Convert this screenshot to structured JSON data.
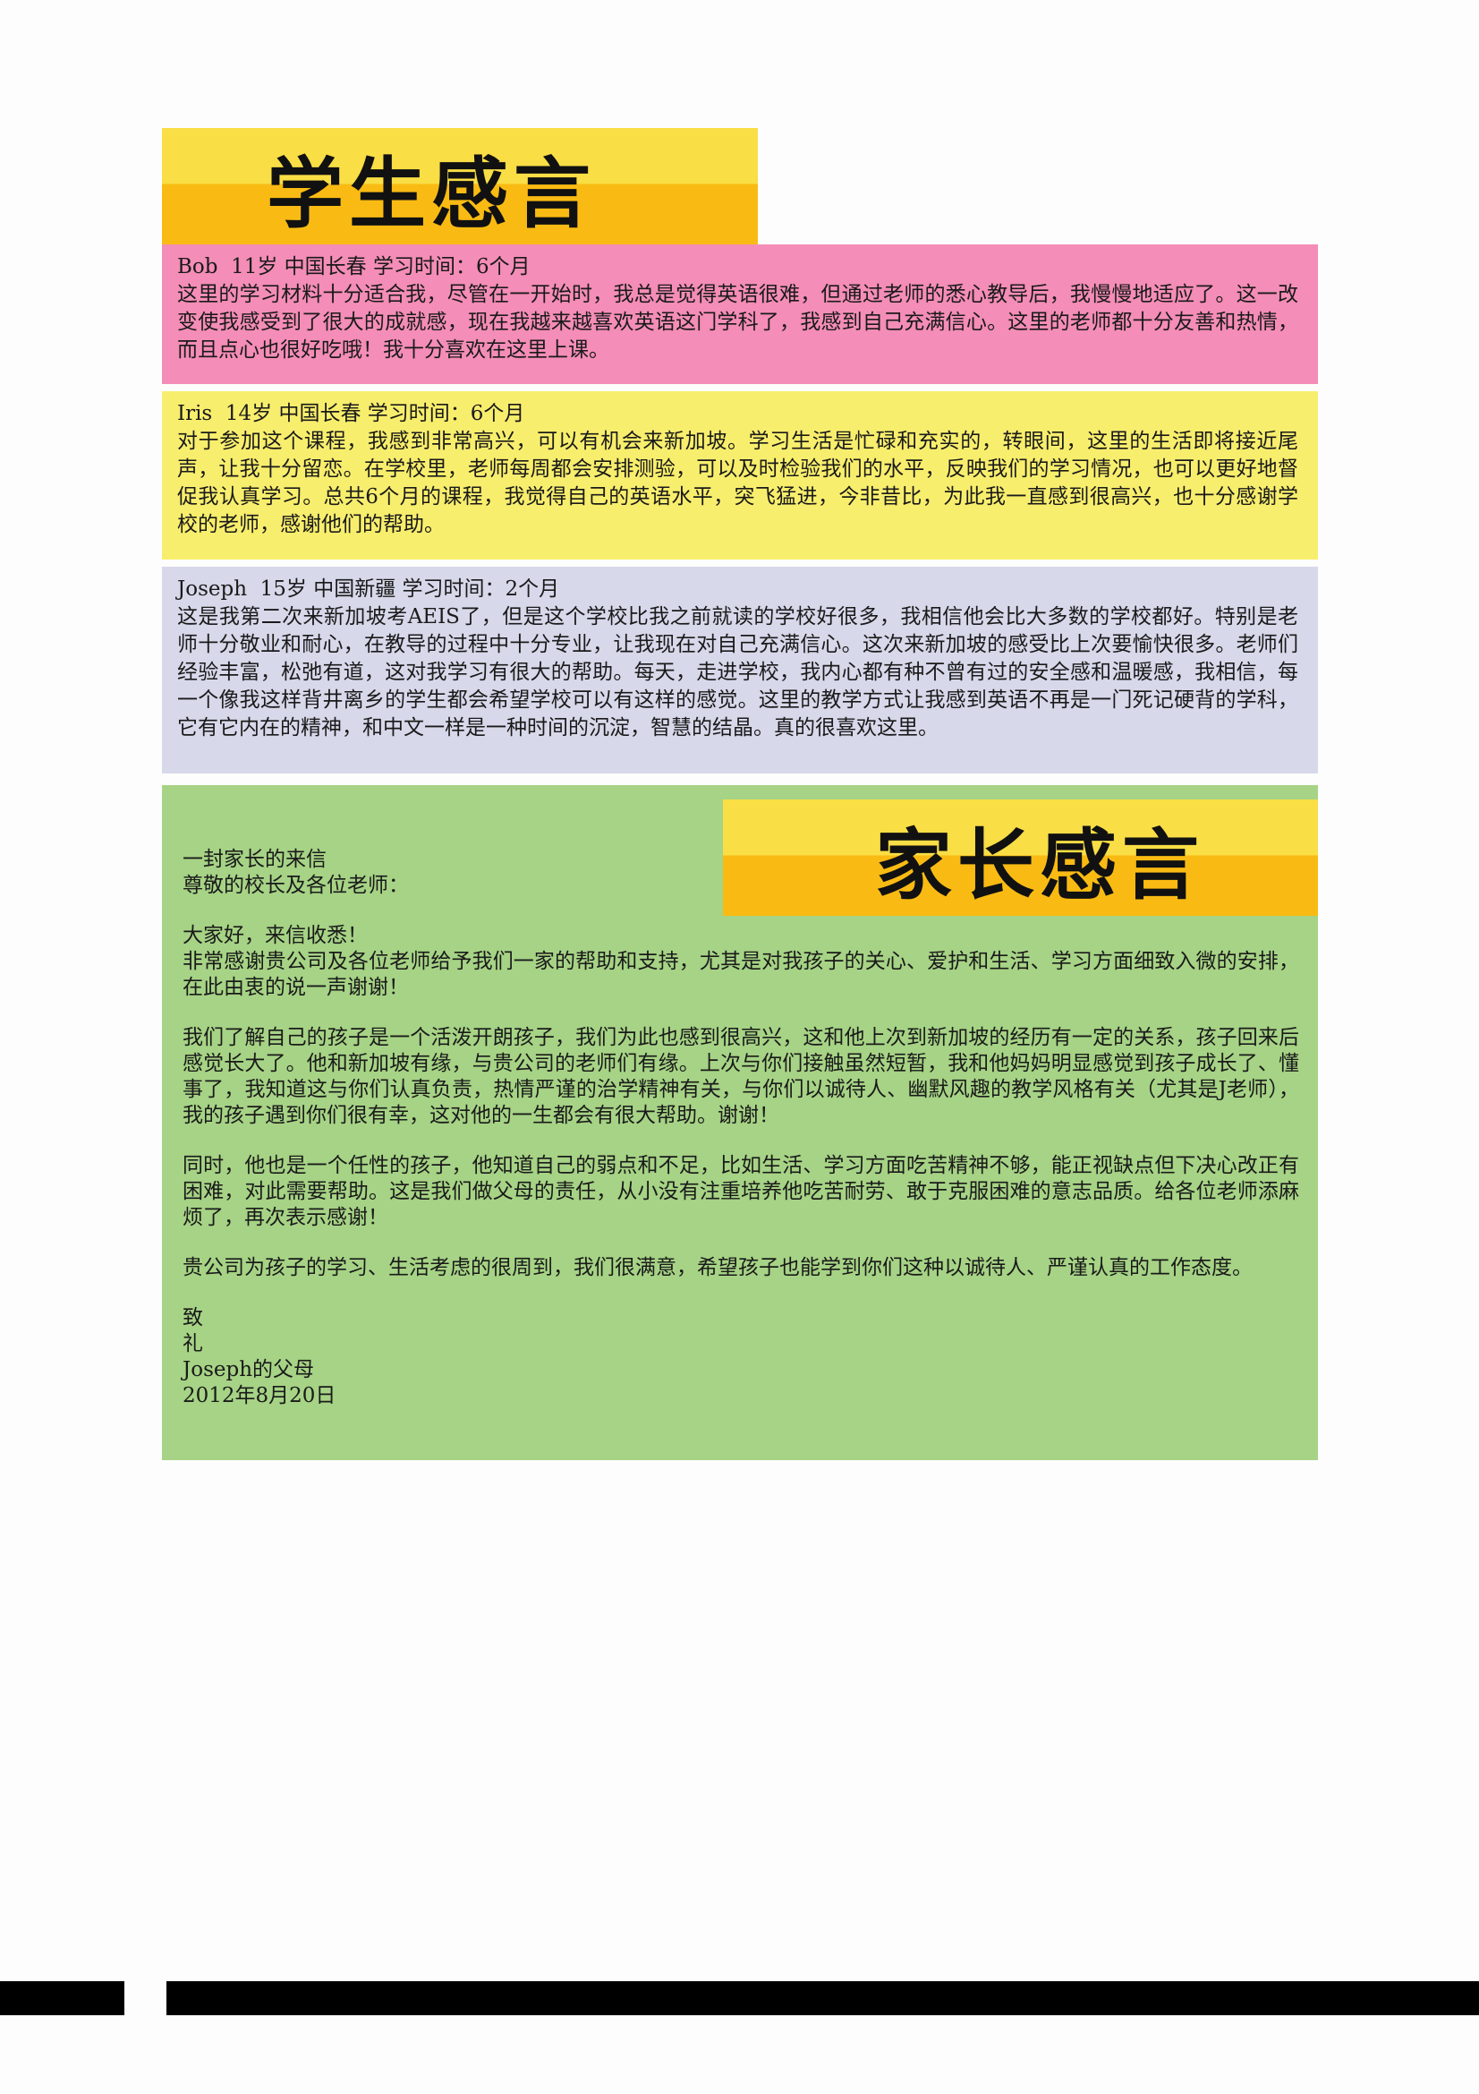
{
  "student_section": {
    "title": "学生感言",
    "testimonials": [
      {
        "meta": "Bob  11岁 中国长春 学习时间：6个月",
        "text": "这里的学习材料十分适合我，尽管在一开始时，我总是觉得英语很难，但通过老师的悉心教导后，我慢慢地适应了。这一改变使我感受到了很大的成就感，现在我越来越喜欢英语这门学科了，我感到自己充满信心。这里的老师都十分友善和热情，而且点心也很好吃哦！我十分喜欢在这里上课。"
      },
      {
        "meta": "Iris  14岁 中国长春 学习时间：6个月",
        "text": "对于参加这个课程，我感到非常高兴，可以有机会来新加坡。学习生活是忙碌和充实的，转眼间，这里的生活即将接近尾声，让我十分留恋。在学校里，老师每周都会安排测验，可以及时检验我们的水平，反映我们的学习情况，也可以更好地督促我认真学习。总共6个月的课程，我觉得自己的英语水平，突飞猛进，今非昔比，为此我一直感到很高兴，也十分感谢学校的老师，感谢他们的帮助。"
      },
      {
        "meta": "Joseph  15岁 中国新疆 学习时间：2个月",
        "text": "这是我第二次来新加坡考AEIS了，但是这个学校比我之前就读的学校好很多，我相信他会比大多数的学校都好。特别是老师十分敬业和耐心，在教导的过程中十分专业，让我现在对自己充满信心。这次来新加坡的感受比上次要愉快很多。老师们经验丰富，松弛有道，这对我学习有很大的帮助。每天，走进学校，我内心都有种不曾有过的安全感和温暖感，我相信，每一个像我这样背井离乡的学生都会希望学校可以有这样的感觉。这里的教学方式让我感到英语不再是一门死记硬背的学科，它有它内在的精神，和中文一样是一种时间的沉淀，智慧的结晶。真的很喜欢这里。"
      }
    ]
  },
  "parent_section": {
    "title": "家长感言",
    "letter": {
      "heading": "一封家长的来信",
      "salutation": "尊敬的校长及各位老师：",
      "greeting": "大家好，来信收悉！",
      "paragraphs": [
        "非常感谢贵公司及各位老师给予我们一家的帮助和支持，尤其是对我孩子的关心、爱护和生活、学习方面细致入微的安排，在此由衷的说一声谢谢！",
        "我们了解自己的孩子是一个活泼开朗孩子，我们为此也感到很高兴，这和他上次到新加坡的经历有一定的关系，孩子回来后感觉长大了。他和新加坡有缘，与贵公司的老师们有缘。上次与你们接触虽然短暂，我和他妈妈明显感觉到孩子成长了、懂事了，我知道这与你们认真负责，热情严谨的治学精神有关，与你们以诚待人、幽默风趣的教学风格有关（尤其是J老师），我的孩子遇到你们很有幸，这对他的一生都会有很大帮助。谢谢！",
        "同时，他也是一个任性的孩子，他知道自己的弱点和不足，比如生活、学习方面吃苦精神不够，能正视缺点但下决心改正有困难，对此需要帮助。这是我们做父母的责任，从小没有注重培养他吃苦耐劳、敢于克服困难的意志品质。给各位老师添麻烦了，再次表示感谢！",
        "贵公司为孩子的学习、生活考虑的很周到，我们很满意，希望孩子也能学到你们这种以诚待人、严谨认真的工作态度。"
      ],
      "closing_line1": "致",
      "closing_line2": "礼",
      "signature": "Joseph的父母",
      "date": "2012年8月20日"
    }
  }
}
